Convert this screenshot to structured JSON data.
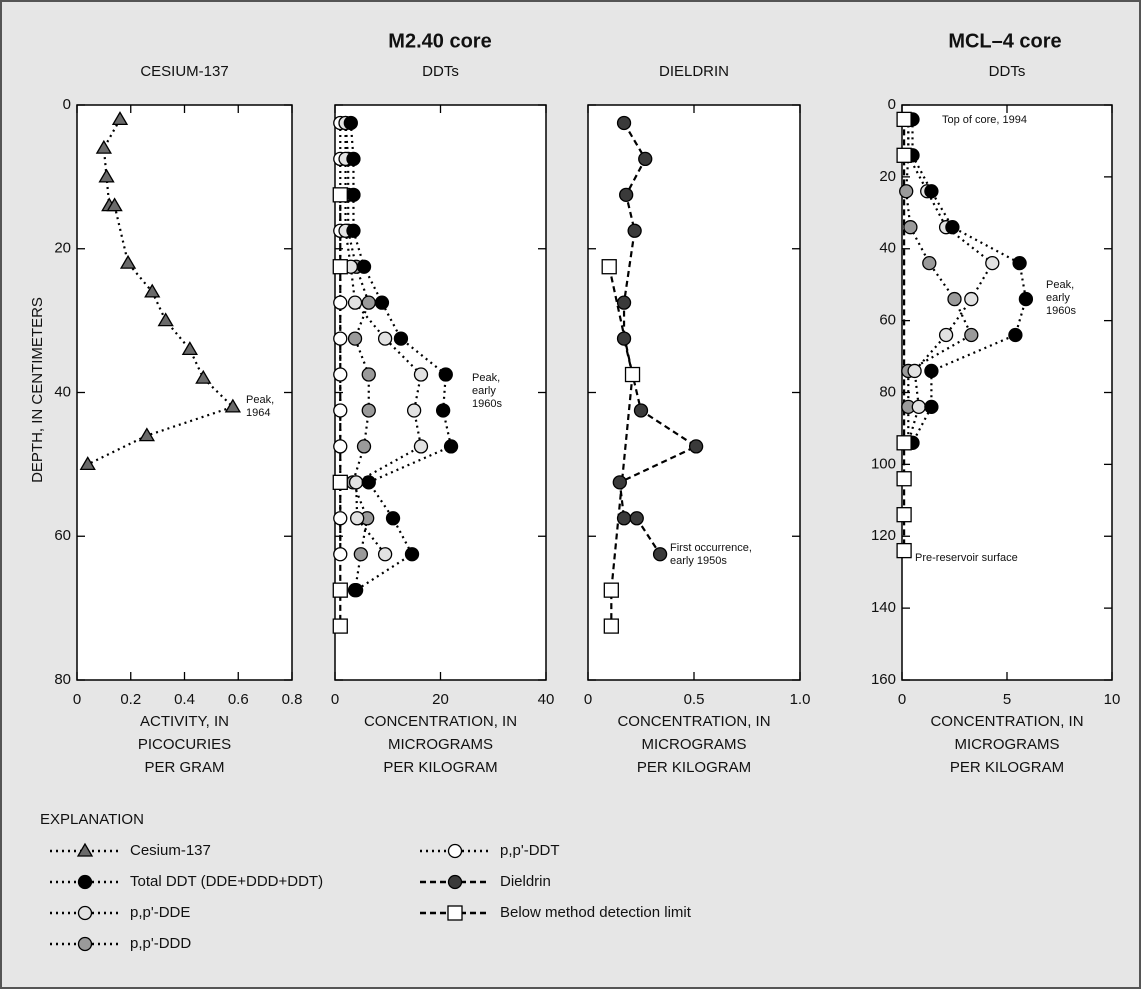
{
  "groups": [
    {
      "title": "M2.40 core"
    },
    {
      "title": "MCL–4 core"
    }
  ],
  "legend_title": "EXPLANATION",
  "legend": [
    {
      "name": "Cesium-137",
      "marker": "triangle",
      "fill": "#6a6a6a",
      "line": "dotted"
    },
    {
      "name": "Total DDT (DDE+DDD+DDT)",
      "marker": "circle",
      "fill": "#000000",
      "line": "dotted"
    },
    {
      "name": "p,p'-DDE",
      "marker": "circle",
      "fill": "#e2e2e2",
      "line": "dotted"
    },
    {
      "name": "p,p'-DDD",
      "marker": "circle",
      "fill": "#9a9a9a",
      "line": "dotted"
    },
    {
      "name": "p,p'-DDT",
      "marker": "circle",
      "fill": "#ffffff",
      "line": "dotted"
    },
    {
      "name": "Dieldrin",
      "marker": "circle",
      "fill": "#3a3a3a",
      "line": "dashed"
    },
    {
      "name": "Below method detection limit",
      "marker": "square",
      "fill": "#ffffff",
      "line": "dashed"
    }
  ],
  "chart_data": [
    {
      "type": "scatter",
      "title": "CESIUM-137",
      "xlabel": [
        "ACTIVITY, IN",
        "PICOCURIES",
        "PER GRAM"
      ],
      "ylabel": "DEPTH, IN CENTIMETERS",
      "xlim": [
        0,
        0.8
      ],
      "xticks": [
        0,
        0.2,
        0.4,
        0.6,
        0.8
      ],
      "ylim": [
        0,
        80
      ],
      "yticks": [
        0,
        20,
        40,
        60,
        80
      ],
      "ytick_labels": true,
      "y_inverted": true,
      "series": [
        {
          "name": "Cesium-137",
          "depths": [
            2,
            6,
            10,
            14,
            14,
            22,
            26,
            30,
            34,
            38,
            42,
            46,
            50
          ],
          "values": [
            0.16,
            0.1,
            0.11,
            0.12,
            0.14,
            0.19,
            0.28,
            0.33,
            0.42,
            0.47,
            0.58,
            0.26,
            0.04
          ]
        }
      ],
      "annotations": [
        [
          "Peak,",
          "1964"
        ]
      ]
    },
    {
      "type": "scatter",
      "title": "DDTs",
      "xlabel": [
        "CONCENTRATION, IN",
        "MICROGRAMS",
        "PER KILOGRAM"
      ],
      "xlim": [
        0,
        40
      ],
      "xticks": [
        0,
        20,
        40
      ],
      "ylim": [
        0,
        80
      ],
      "yticks": [
        0,
        20,
        40,
        60,
        80
      ],
      "ytick_labels": false,
      "y_inverted": true,
      "series": [
        {
          "name": "p,p'-DDT",
          "depths": [
            2.5,
            7.5,
            17.5,
            27.5,
            32.5,
            37.5,
            42.5,
            47.5,
            57.5,
            62.5
          ],
          "values": [
            1,
            1,
            1,
            1,
            1,
            1,
            1,
            1,
            1,
            1
          ]
        },
        {
          "name": "p,p'-DDD",
          "depths": [
            2.5,
            7.5,
            12.5,
            17.5,
            22.5,
            27.5,
            32.5,
            37.5,
            42.5,
            47.5,
            52.5,
            57.5,
            62.5,
            67.5
          ],
          "values": [
            2,
            2.5,
            2.5,
            2.5,
            4,
            6.4,
            3.8,
            6.4,
            6.4,
            5.5,
            3.4,
            6.1,
            4.9,
            3.8
          ]
        },
        {
          "name": "p,p'-DDE",
          "depths": [
            2.5,
            7.5,
            12.5,
            17.5,
            22.5,
            27.5,
            32.5,
            37.5,
            42.5,
            47.5,
            52.5,
            57.5,
            62.5
          ],
          "values": [
            2,
            2,
            2,
            2,
            3,
            3.8,
            9.5,
            16.3,
            15,
            16.3,
            4,
            4.2,
            9.5
          ]
        },
        {
          "name": "Total DDT (DDE+DDD+DDT)",
          "depths": [
            2.5,
            7.5,
            12.5,
            17.5,
            22.5,
            27.5,
            32.5,
            37.5,
            42.5,
            47.5,
            52.5,
            57.5,
            62.5,
            67.5
          ],
          "values": [
            3,
            3.5,
            3.5,
            3.5,
            5.5,
            8.9,
            12.5,
            21,
            20.5,
            22,
            6.4,
            11,
            14.6,
            4
          ]
        },
        {
          "name": "Below method detection limit",
          "depths": [
            12.5,
            22.5,
            52.5,
            67.5,
            72.5
          ],
          "values": [
            1,
            1,
            1,
            1,
            1
          ]
        }
      ],
      "annotations": [
        [
          "Peak,",
          "early",
          "1960s"
        ]
      ]
    },
    {
      "type": "scatter",
      "title": "DIELDRIN",
      "xlabel": [
        "CONCENTRATION, IN",
        "MICROGRAMS",
        "PER KILOGRAM"
      ],
      "xlim": [
        0,
        1
      ],
      "xticks": [
        0,
        0.5,
        {
          "value": 1,
          "label": "1.0"
        }
      ],
      "ylim": [
        0,
        80
      ],
      "yticks": [
        0,
        20,
        40,
        60,
        80
      ],
      "ytick_labels": false,
      "y_inverted": true,
      "series": [
        {
          "name": "Dieldrin",
          "depths": [
            2.5,
            7.5,
            12.5,
            17.5,
            27.5,
            32.5,
            42.5,
            47.5,
            52.5,
            57.5,
            57.5,
            62.5
          ],
          "values": [
            0.17,
            0.27,
            0.18,
            0.22,
            0.17,
            0.17,
            0.25,
            0.51,
            0.15,
            0.17,
            0.23,
            0.34
          ]
        },
        {
          "name": "Below method detection limit",
          "depths": [
            22.5,
            37.5,
            67.5,
            72.5
          ],
          "values": [
            0.1,
            0.21,
            0.11,
            0.11
          ]
        }
      ],
      "annotations": [
        [
          "First occurrence,",
          "early 1950s"
        ]
      ]
    },
    {
      "type": "scatter",
      "title": "DDTs",
      "xlabel": [
        "CONCENTRATION, IN",
        "MICROGRAMS",
        "PER KILOGRAM"
      ],
      "xlim": [
        0,
        10
      ],
      "xticks": [
        0,
        5,
        10
      ],
      "ylim": [
        0,
        160
      ],
      "yticks": [
        0,
        20,
        40,
        60,
        80,
        100,
        120,
        140,
        160
      ],
      "ytick_labels": true,
      "y_inverted": true,
      "series": [
        {
          "name": "p,p'-DDD",
          "depths": [
            4,
            14,
            24,
            34,
            44,
            54,
            64,
            74,
            84,
            94
          ],
          "values": [
            0.3,
            0.3,
            0.2,
            0.4,
            1.3,
            2.5,
            3.3,
            0.3,
            0.3,
            0.3
          ]
        },
        {
          "name": "p,p'-DDE",
          "depths": [
            4,
            14,
            24,
            34,
            44,
            54,
            64,
            74,
            84,
            94
          ],
          "values": [
            0.3,
            0.3,
            1.2,
            2.1,
            4.3,
            3.3,
            2.1,
            0.6,
            0.8,
            0.3
          ]
        },
        {
          "name": "Total DDT (DDE+DDD+DDT)",
          "depths": [
            4,
            14,
            24,
            34,
            44,
            54,
            64,
            74,
            84,
            94
          ],
          "values": [
            0.5,
            0.5,
            1.4,
            2.4,
            5.6,
            5.9,
            5.4,
            1.4,
            1.4,
            0.5
          ]
        },
        {
          "name": "Below method detection limit",
          "depths": [
            4,
            14,
            94,
            104,
            114,
            124
          ],
          "values": [
            0.1,
            0.1,
            0.1,
            0.1,
            0.1,
            0.1
          ]
        }
      ],
      "annotations": [
        [
          "Top of core, 1994"
        ],
        [
          "Peak,",
          "early",
          "1960s"
        ],
        [
          "Pre-reservoir surface"
        ]
      ]
    }
  ]
}
